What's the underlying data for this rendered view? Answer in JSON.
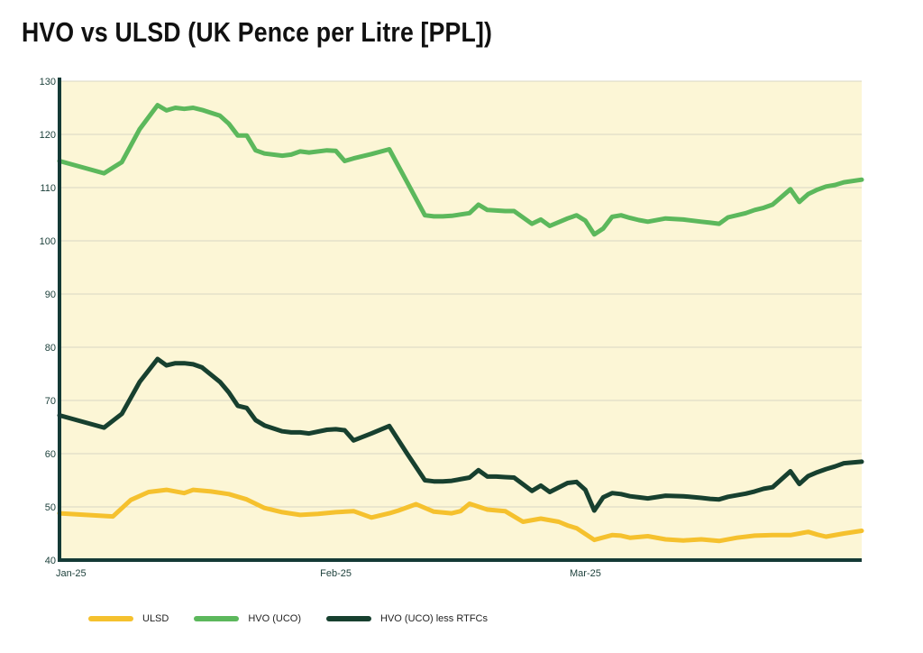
{
  "chart_data": {
    "type": "line",
    "title": "HVO vs ULSD (UK Pence per Litre [PPL])",
    "xlabel": "",
    "ylabel": "",
    "ylim": [
      40,
      130
    ],
    "y_ticks": [
      40,
      50,
      60,
      70,
      80,
      90,
      100,
      110,
      120,
      130
    ],
    "x_tick_labels": [
      {
        "label": "Jan-25",
        "x": 0
      },
      {
        "label": "Feb-25",
        "x": 31
      },
      {
        "label": "Mar-25",
        "x": 59
      }
    ],
    "x_range": [
      0,
      90
    ],
    "grid": "horizontal",
    "background_color": "#fcf6d6",
    "legend_position": "bottom",
    "series": [
      {
        "name": "ULSD",
        "color": "#f5c12e",
        "x": [
          0,
          6,
          8,
          10,
          12,
          14,
          15,
          17,
          19,
          21,
          23,
          25,
          27,
          29,
          31,
          33,
          35,
          37,
          38,
          40,
          42,
          44,
          45,
          46,
          48,
          50,
          52,
          54,
          56,
          57,
          58,
          60,
          62,
          63,
          64,
          66,
          68,
          70,
          72,
          74,
          76,
          78,
          80,
          82,
          84,
          85,
          86,
          88,
          90
        ],
        "values": [
          48.8,
          48.2,
          51.3,
          52.8,
          53.2,
          52.6,
          53.2,
          52.9,
          52.4,
          51.4,
          49.8,
          49.0,
          48.5,
          48.7,
          49.0,
          49.2,
          48.0,
          48.8,
          49.3,
          50.5,
          49.1,
          48.8,
          49.2,
          50.6,
          49.5,
          49.2,
          47.2,
          47.8,
          47.2,
          46.5,
          46.0,
          43.8,
          44.7,
          44.6,
          44.2,
          44.5,
          43.9,
          43.7,
          43.9,
          43.6,
          44.2,
          44.6,
          44.7,
          44.7,
          45.3,
          44.8,
          44.4,
          45.0,
          45.5
        ]
      },
      {
        "name": "HVO (UCO)",
        "color": "#5cb85c",
        "x": [
          0,
          5,
          7,
          9,
          11,
          12,
          13,
          14,
          15,
          16,
          18,
          19,
          20,
          21,
          22,
          23,
          25,
          26,
          27,
          28,
          30,
          31,
          32,
          33,
          35,
          37,
          39,
          41,
          42,
          43,
          44,
          46,
          47,
          48,
          49,
          50,
          51,
          53,
          54,
          55,
          57,
          58,
          59,
          60,
          61,
          62,
          63,
          64,
          65,
          66,
          68,
          70,
          72,
          73,
          74,
          75,
          77,
          78,
          79,
          80,
          82,
          83,
          84,
          85,
          86,
          87,
          88,
          90
        ],
        "values": [
          115.0,
          112.7,
          114.8,
          121.0,
          125.5,
          124.5,
          125.0,
          124.8,
          125.0,
          124.6,
          123.5,
          122.0,
          119.8,
          119.8,
          117.0,
          116.4,
          116.0,
          116.2,
          116.8,
          116.6,
          117.0,
          116.9,
          115.0,
          115.5,
          116.3,
          117.2,
          111.0,
          104.8,
          104.6,
          104.6,
          104.7,
          105.2,
          106.8,
          105.8,
          105.7,
          105.6,
          105.6,
          103.2,
          104.0,
          102.8,
          104.2,
          104.8,
          103.8,
          101.2,
          102.3,
          104.5,
          104.8,
          104.3,
          103.9,
          103.6,
          104.2,
          104.0,
          103.6,
          103.4,
          103.2,
          104.4,
          105.2,
          105.8,
          106.2,
          106.8,
          109.7,
          107.3,
          108.8,
          109.6,
          110.2,
          110.5,
          111.0,
          111.5
        ]
      },
      {
        "name": "HVO (UCO) less RTFCs",
        "color": "#17402f",
        "x": [
          0,
          5,
          7,
          9,
          11,
          12,
          13,
          14,
          15,
          16,
          18,
          19,
          20,
          21,
          22,
          23,
          25,
          26,
          27,
          28,
          30,
          31,
          32,
          33,
          35,
          37,
          39,
          41,
          42,
          43,
          44,
          46,
          47,
          48,
          49,
          50,
          51,
          53,
          54,
          55,
          57,
          58,
          59,
          60,
          61,
          62,
          63,
          64,
          65,
          66,
          68,
          70,
          72,
          73,
          74,
          75,
          77,
          78,
          79,
          80,
          82,
          83,
          84,
          85,
          86,
          87,
          88,
          90
        ],
        "values": [
          67.2,
          64.9,
          67.5,
          73.5,
          77.8,
          76.6,
          77.0,
          77.0,
          76.8,
          76.2,
          73.5,
          71.5,
          69.0,
          68.6,
          66.3,
          65.3,
          64.2,
          64.0,
          64.0,
          63.8,
          64.5,
          64.6,
          64.4,
          62.5,
          63.8,
          65.2,
          60.0,
          55.0,
          54.8,
          54.8,
          54.9,
          55.5,
          56.9,
          55.7,
          55.7,
          55.6,
          55.5,
          53.0,
          54.0,
          52.8,
          54.5,
          54.7,
          53.2,
          49.3,
          51.8,
          52.6,
          52.4,
          52.0,
          51.8,
          51.6,
          52.1,
          52.0,
          51.7,
          51.5,
          51.4,
          51.9,
          52.5,
          52.9,
          53.4,
          53.7,
          56.7,
          54.3,
          55.8,
          56.5,
          57.1,
          57.6,
          58.2,
          58.5
        ]
      }
    ]
  }
}
